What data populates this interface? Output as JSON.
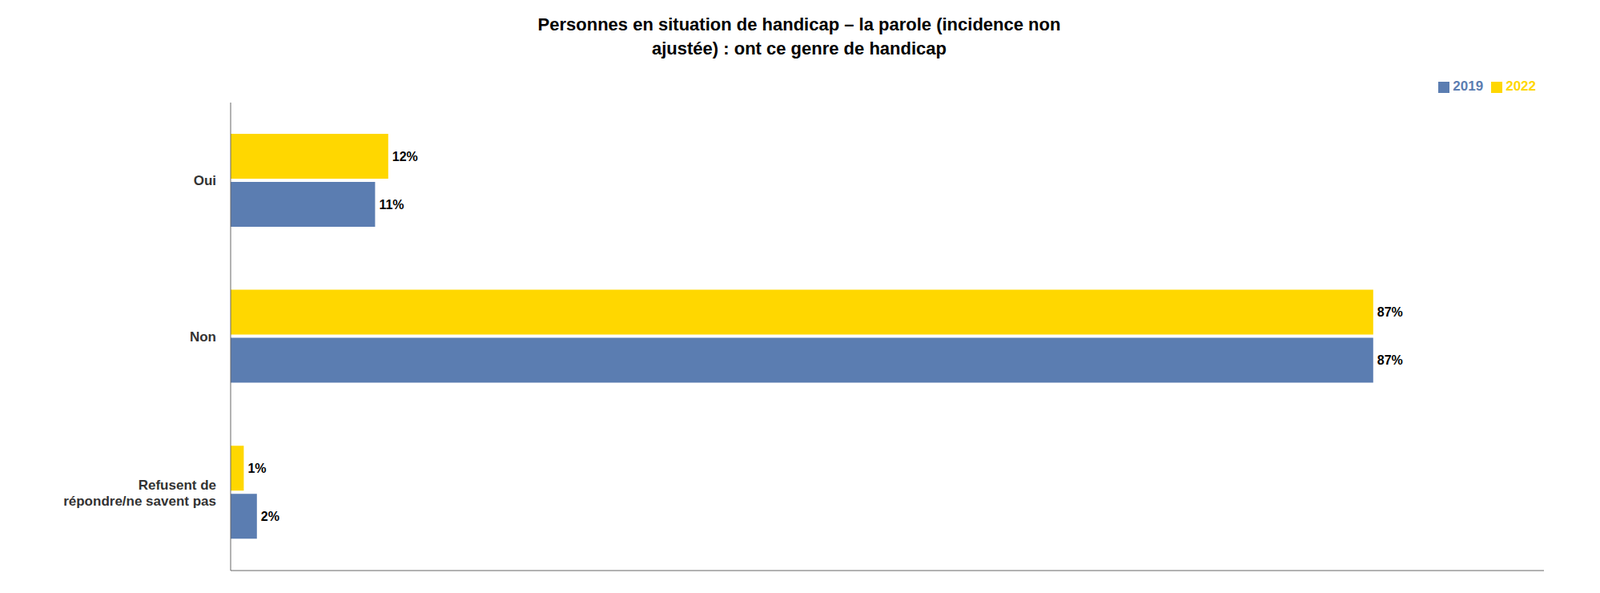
{
  "chart_data": {
    "type": "bar",
    "orientation": "horizontal",
    "title": "Personnes en situation de handicap – la parole (incidence non\najustée) : ont ce genre de handicap",
    "categories": [
      "Oui",
      "Non",
      "Refusent de\nrépondre/ne savent pas"
    ],
    "series": [
      {
        "name": "2022",
        "color": "#FFD700",
        "values": [
          12,
          87,
          1
        ],
        "value_labels": [
          "12%",
          "87%",
          "1%"
        ]
      },
      {
        "name": "2019",
        "color": "#5B7DB1",
        "values": [
          11,
          87,
          2
        ],
        "value_labels": [
          "11%",
          "87%",
          "2%"
        ]
      }
    ],
    "xlim": [
      0,
      100
    ],
    "grid": false,
    "legend": "upper right",
    "data_labels": true,
    "tick_labels": "y"
  }
}
